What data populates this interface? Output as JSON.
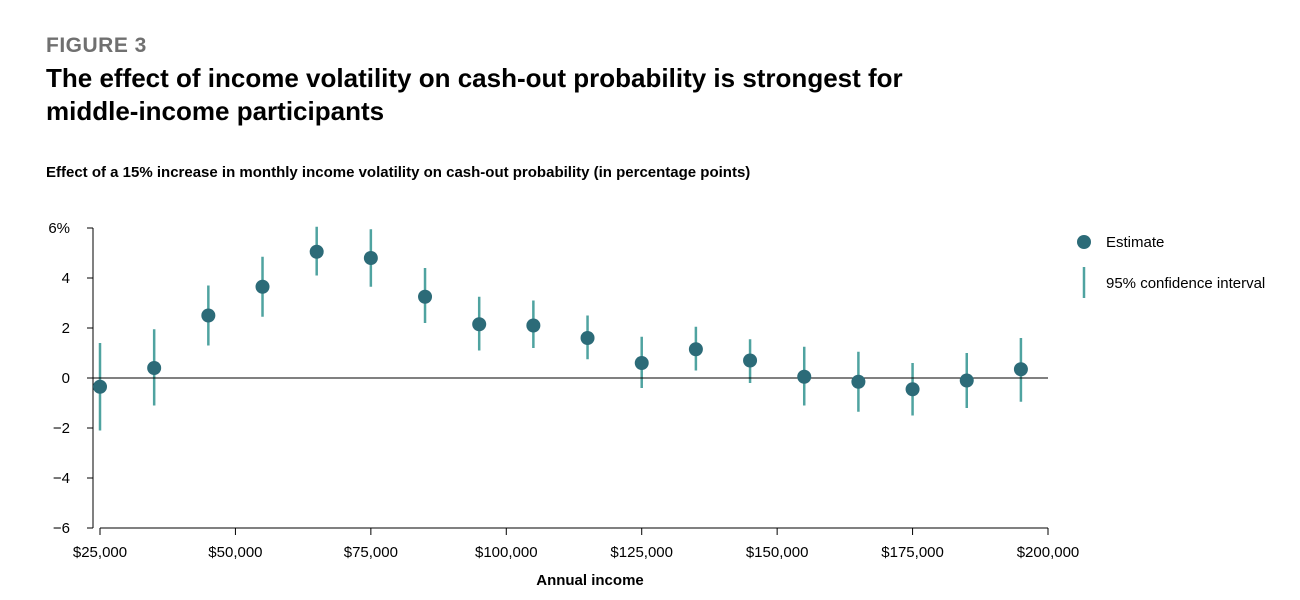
{
  "header": {
    "figure_label": "FIGURE 3",
    "title": "The effect of income volatility on cash-out probability is strongest for middle-income participants",
    "subtitle": "Effect of a 15% increase in monthly income volatility on cash-out probability (in percentage points)"
  },
  "legend": {
    "estimate_label": "Estimate",
    "ci_label": "95% confidence interval"
  },
  "colors": {
    "marker": "#2c6b78",
    "ci": "#4fa3a0",
    "axis": "#000000"
  },
  "chart_data": {
    "type": "scatter",
    "title": "The effect of income volatility on cash-out probability is strongest for middle-income participants",
    "subtitle": "Effect of a 15% increase in monthly income volatility on cash-out probability (in percentage points)",
    "xlabel": "Annual income",
    "ylabel": "",
    "xlim": [
      25000,
      200000
    ],
    "ylim": [
      -6,
      6
    ],
    "x_ticks": [
      25000,
      50000,
      75000,
      100000,
      125000,
      150000,
      175000,
      200000
    ],
    "x_tick_labels": [
      "$25,000",
      "$50,000",
      "$75,000",
      "$100,000",
      "$125,000",
      "$150,000",
      "$175,000",
      "$200,000"
    ],
    "y_ticks": [
      -6,
      -4,
      -2,
      0,
      2,
      4,
      6
    ],
    "y_tick_labels": [
      "−6",
      "−4",
      "−2",
      "0",
      "2",
      "4",
      "6%"
    ],
    "grid": false,
    "legend_position": "right",
    "series": [
      {
        "name": "Estimate",
        "x": [
          25000,
          35000,
          45000,
          55000,
          65000,
          75000,
          85000,
          95000,
          105000,
          115000,
          125000,
          135000,
          145000,
          155000,
          165000,
          175000,
          185000,
          195000
        ],
        "y": [
          -0.35,
          0.4,
          2.5,
          3.65,
          5.05,
          4.8,
          3.25,
          2.15,
          2.1,
          1.6,
          0.6,
          1.15,
          0.7,
          0.05,
          -0.15,
          -0.45,
          -0.1,
          0.35
        ],
        "ci_low": [
          -2.1,
          -1.1,
          1.3,
          2.45,
          4.1,
          3.65,
          2.2,
          1.1,
          1.2,
          0.75,
          -0.4,
          0.3,
          -0.2,
          -1.1,
          -1.35,
          -1.5,
          -1.2,
          -0.95
        ],
        "ci_high": [
          1.4,
          1.95,
          3.7,
          4.85,
          6.05,
          5.95,
          4.4,
          3.25,
          3.1,
          2.5,
          1.65,
          2.05,
          1.55,
          1.25,
          1.05,
          0.6,
          1.0,
          1.6
        ]
      }
    ]
  }
}
